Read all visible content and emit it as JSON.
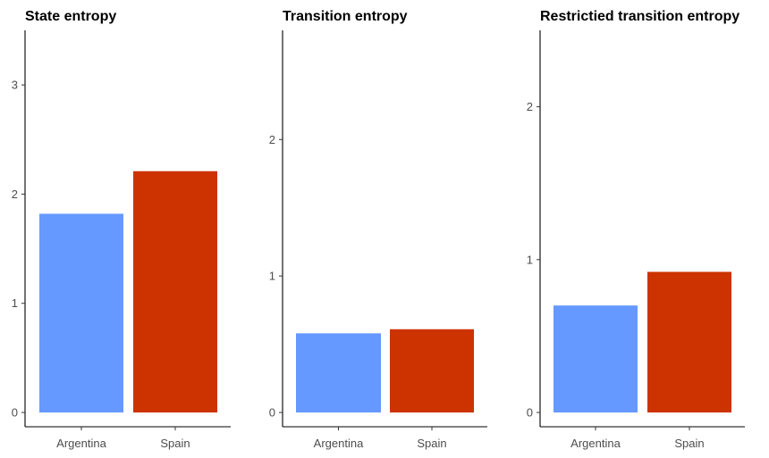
{
  "chart_data": [
    {
      "type": "bar",
      "title": "State entropy",
      "xlabel": "",
      "ylabel": "",
      "categories": [
        "Argentina",
        "Spain"
      ],
      "values": [
        1.82,
        2.21
      ],
      "colors": [
        "#6699FF",
        "#CC3300"
      ],
      "yticks": [
        0,
        1,
        2,
        3
      ],
      "ylim": [
        0,
        3.5
      ],
      "grid": false,
      "legend": "none"
    },
    {
      "type": "bar",
      "title": "Transition entropy",
      "xlabel": "",
      "ylabel": "",
      "categories": [
        "Argentina",
        "Spain"
      ],
      "values": [
        0.58,
        0.61
      ],
      "colors": [
        "#6699FF",
        "#CC3300"
      ],
      "yticks": [
        0,
        1,
        2
      ],
      "ylim": [
        0,
        2.8
      ],
      "grid": false,
      "legend": "none"
    },
    {
      "type": "bar",
      "title": "Restrictied transition entropy",
      "xlabel": "",
      "ylabel": "",
      "categories": [
        "Argentina",
        "Spain"
      ],
      "values": [
        0.7,
        0.92
      ],
      "colors": [
        "#6699FF",
        "#CC3300"
      ],
      "yticks": [
        0,
        1,
        2
      ],
      "ylim": [
        0,
        2.5
      ],
      "grid": false,
      "legend": "none"
    }
  ]
}
